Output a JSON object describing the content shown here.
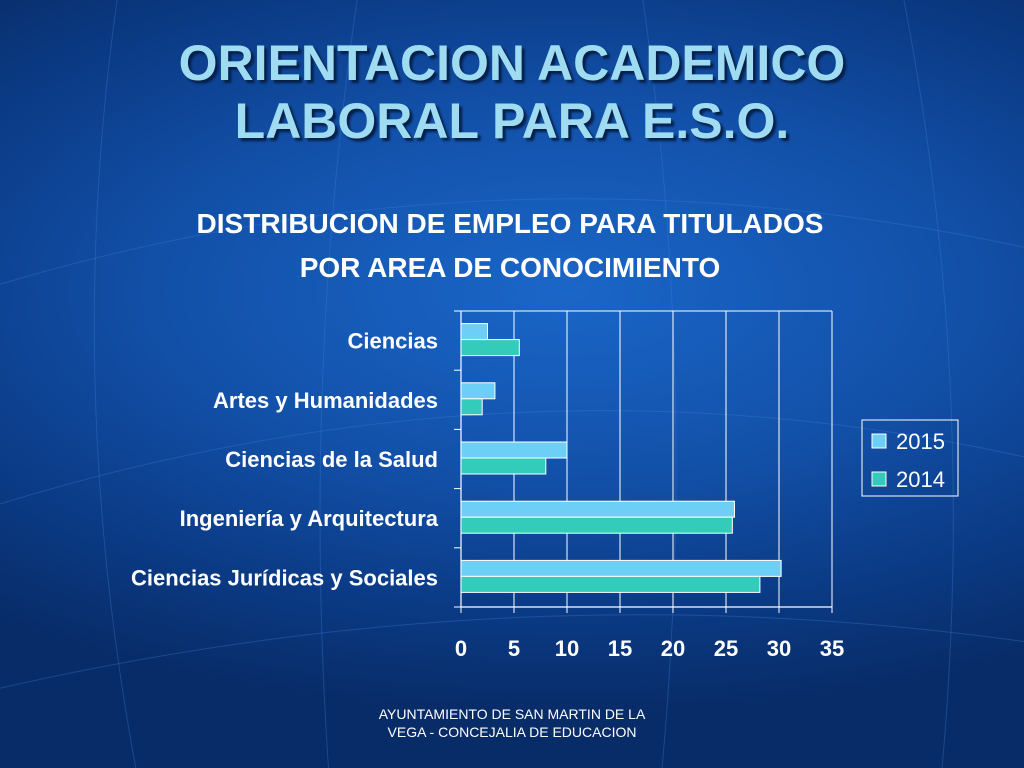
{
  "slide": {
    "title_line1": "ORIENTACION ACADEMICO",
    "title_line2": "LABORAL PARA E.S.O.",
    "footer_line1": "AYUNTAMIENTO DE SAN MARTIN DE LA",
    "footer_line2": "VEGA - CONCEJALIA DE EDUCACION"
  },
  "chart_data": {
    "type": "bar",
    "orientation": "horizontal",
    "title_line1": "DISTRIBUCION DE EMPLEO PARA TITULADOS",
    "title_line2": "POR AREA DE CONOCIMIENTO",
    "categories": [
      "Ciencias",
      "Artes y Humanidades",
      "Ciencias de la Salud",
      "Ingeniería y Arquitectura",
      "Ciencias Jurídicas y Sociales"
    ],
    "series": [
      {
        "name": "2015",
        "color": "#6ecff6",
        "values": [
          2.5,
          3.2,
          10,
          25.8,
          30.2
        ]
      },
      {
        "name": "2014",
        "color": "#33ccbb",
        "values": [
          5.5,
          2.0,
          8.0,
          25.6,
          28.2
        ]
      }
    ],
    "xlim": [
      0,
      35
    ],
    "xticks": [
      0,
      5,
      10,
      15,
      20,
      25,
      30,
      35
    ],
    "grid": true,
    "legend_position": "right"
  }
}
